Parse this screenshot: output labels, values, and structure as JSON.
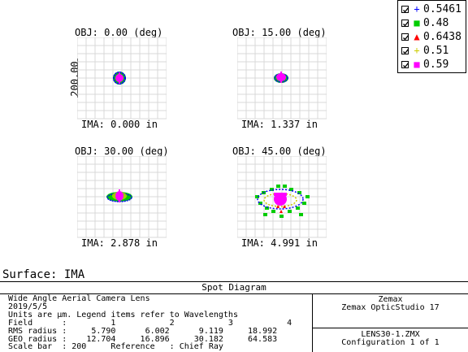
{
  "legend": {
    "items": [
      {
        "marker": "+",
        "color": "#0000ff",
        "value": "0.5461",
        "icon": "plus-icon"
      },
      {
        "marker": "■",
        "color": "#00cc00",
        "value": "0.48",
        "icon": "square-icon"
      },
      {
        "marker": "▲",
        "color": "#ff0000",
        "value": "0.6438",
        "icon": "triangle-icon"
      },
      {
        "marker": "+",
        "color": "#cccc00",
        "value": "0.51",
        "icon": "plus-icon"
      },
      {
        "marker": "■",
        "color": "#ff00ff",
        "value": "0.59",
        "icon": "square-icon"
      }
    ]
  },
  "plots": [
    {
      "obj": "OBJ: 0.00 (deg)",
      "ima": "IMA: 0.000 in"
    },
    {
      "obj": "OBJ: 15.00 (deg)",
      "ima": "IMA: 1.337 in"
    },
    {
      "obj": "OBJ: 30.00 (deg)",
      "ima": "IMA: 2.878 in"
    },
    {
      "obj": "OBJ: 45.00 (deg)",
      "ima": "IMA: 4.991 in"
    }
  ],
  "scale_label": "200.00",
  "surface": "Surface: IMA",
  "footer": {
    "title": "Spot Diagram",
    "lines": [
      "Wide Angle Aerial Camera Lens",
      "2019/5/5",
      "Units are µm. Legend items refer to Wavelengths",
      "Field      :         1           2           3           4",
      "RMS radius :     5.790      6.002      9.119     18.992",
      "GEO radius :    12.704     16.896     30.182     64.583",
      "Scale bar  : 200     Reference   : Chief Ray"
    ],
    "vendor": "Zemax",
    "product": "Zemax OpticStudio 17",
    "file": "LENS30-1.ZMX",
    "config": "Configuration 1 of 1"
  }
}
